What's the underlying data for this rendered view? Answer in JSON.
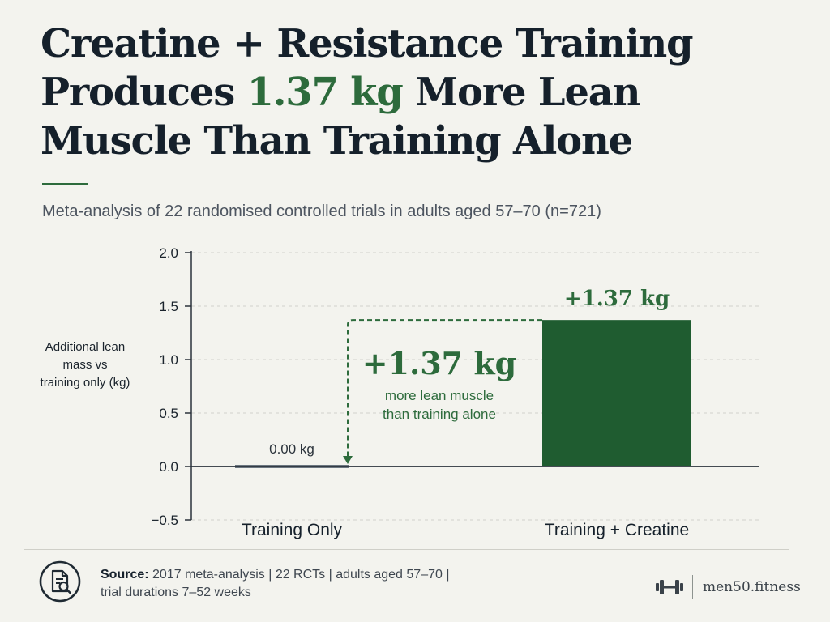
{
  "title": {
    "line1": "Creatine + Resistance Training",
    "line2_pre": "Produces ",
    "line2_highlight": "1.37 kg",
    "line2_post": " More Lean",
    "line3": "Muscle Than Training Alone"
  },
  "subtitle": "Meta-analysis of 22 randomised controlled trials in adults aged 57–70 (n=721)",
  "chart_data": {
    "type": "bar",
    "categories": [
      "Training Only",
      "Training + Creatine"
    ],
    "values": [
      0.0,
      1.37
    ],
    "value_labels": [
      "0.00 kg",
      "+1.37 kg"
    ],
    "ylabel_lines": [
      "Additional lean",
      "mass vs",
      "training only (kg)"
    ],
    "ylim": [
      -0.5,
      2.0
    ],
    "yticks": [
      2.0,
      1.5,
      1.0,
      0.5,
      0.0,
      -0.5
    ],
    "ytick_labels": [
      "2.0",
      "1.5",
      "1.0",
      "0.5",
      "0.0",
      "−0.5"
    ],
    "grid": true,
    "annotation": {
      "value": "+1.37 kg",
      "line1": "more lean muscle",
      "line2": "than training alone"
    },
    "colors": {
      "bar_training_only": "#6b7680",
      "bar_training_creatine": "#1f5c30",
      "accent": "#2d6b3c"
    }
  },
  "footer": {
    "source_label": "Source:",
    "source_line1": " 2017 meta-analysis | 22 RCTs | adults aged 57–70 |",
    "source_line2": "trial durations 7–52 weeks",
    "icon": "document-search-icon",
    "brand_icon": "dumbbell-icon",
    "brand": "men50.fitness"
  }
}
